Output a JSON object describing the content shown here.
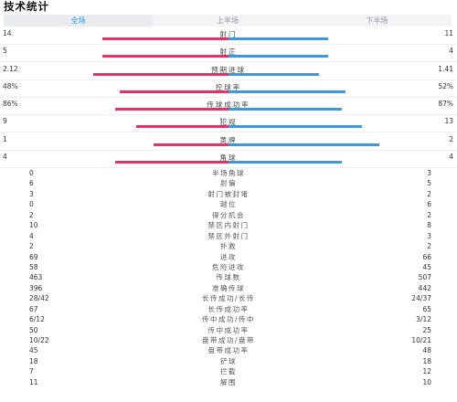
{
  "title": "技术统计",
  "tabs": [
    {
      "label": "全场",
      "active": true
    },
    {
      "label": "上半场",
      "active": false
    },
    {
      "label": "下半场",
      "active": false
    }
  ],
  "colors": {
    "home": "#e5306a",
    "away": "#3a97e2",
    "active_tab": "#1e9af0"
  },
  "bar_stats": [
    {
      "label": "射门",
      "left": "14",
      "right": "11",
      "left_share": 0.56,
      "right_share": 0.44
    },
    {
      "label": "射正",
      "left": "5",
      "right": "4",
      "left_share": 0.56,
      "right_share": 0.44
    },
    {
      "label": "预期进球",
      "left": "2.12",
      "right": "1.41",
      "left_share": 0.6,
      "right_share": 0.4
    },
    {
      "label": "控球率",
      "left": "48%",
      "right": "52%",
      "left_share": 0.48,
      "right_share": 0.52
    },
    {
      "label": "传球成功率",
      "left": "86%",
      "right": "87%",
      "left_share": 0.5,
      "right_share": 0.5
    },
    {
      "label": "犯规",
      "left": "9",
      "right": "13",
      "left_share": 0.41,
      "right_share": 0.59
    },
    {
      "label": "黄牌",
      "left": "1",
      "right": "2",
      "left_share": 0.33,
      "right_share": 0.67
    },
    {
      "label": "角球",
      "left": "4",
      "right": "4",
      "left_share": 0.5,
      "right_share": 0.5
    }
  ],
  "table_stats": [
    {
      "left": "0",
      "label": "半场角球",
      "right": "3"
    },
    {
      "left": "6",
      "label": "射偏",
      "right": "5"
    },
    {
      "left": "3",
      "label": "射门被封堵",
      "right": "2"
    },
    {
      "left": "0",
      "label": "越位",
      "right": "6"
    },
    {
      "left": "2",
      "label": "得分机会",
      "right": "2"
    },
    {
      "left": "10",
      "label": "禁区内射门",
      "right": "8"
    },
    {
      "left": "4",
      "label": "禁区外射门",
      "right": "3"
    },
    {
      "left": "2",
      "label": "扑救",
      "right": "2"
    },
    {
      "left": "69",
      "label": "进攻",
      "right": "66"
    },
    {
      "left": "58",
      "label": "危险进攻",
      "right": "45"
    },
    {
      "left": "463",
      "label": "传球数",
      "right": "507"
    },
    {
      "left": "396",
      "label": "准确传球",
      "right": "442"
    },
    {
      "left": "28/42",
      "label": "长传成功/长传",
      "right": "24/37"
    },
    {
      "left": "67",
      "label": "长传成功率",
      "right": "65"
    },
    {
      "left": "6/12",
      "label": "传中成功/传中",
      "right": "3/12"
    },
    {
      "left": "50",
      "label": "传中成功率",
      "right": "25"
    },
    {
      "left": "10/22",
      "label": "盘带成功/盘带",
      "right": "10/21"
    },
    {
      "left": "45",
      "label": "盘带成功率",
      "right": "48"
    },
    {
      "left": "18",
      "label": "铲球",
      "right": "18"
    },
    {
      "left": "7",
      "label": "拦截",
      "right": "12"
    },
    {
      "left": "11",
      "label": "解围",
      "right": "10"
    }
  ]
}
